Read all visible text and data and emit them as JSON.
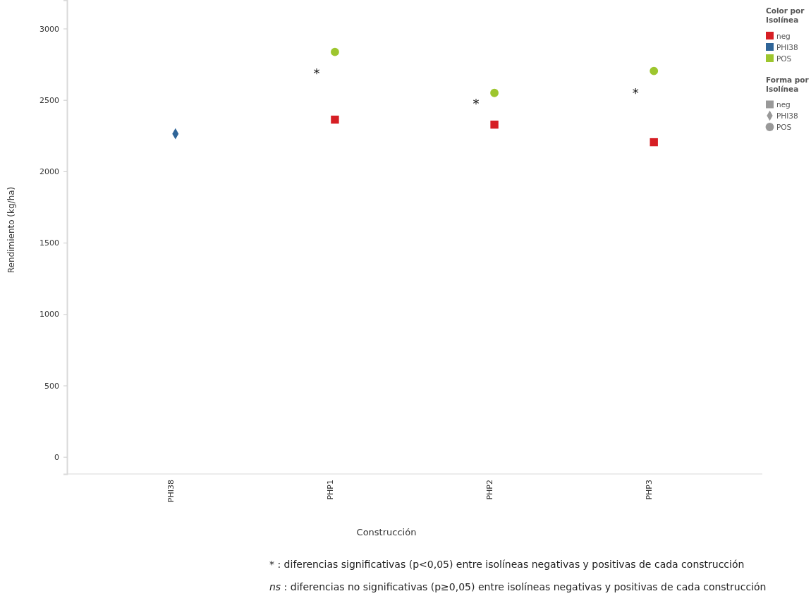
{
  "chart_data": {
    "type": "scatter",
    "xlabel": "Construcción",
    "ylabel": "Rendimiento (kg/ha)",
    "categories": [
      "PHI38",
      "PHP1",
      "PHP2",
      "PHP3"
    ],
    "series": [
      {
        "name": "neg",
        "color": "#d61e24",
        "marker": "square",
        "values": [
          null,
          2362,
          2327,
          2204
        ]
      },
      {
        "name": "PHI38",
        "color": "#2f6598",
        "marker": "diamond",
        "values": [
          2263,
          null,
          null,
          null
        ]
      },
      {
        "name": "POS",
        "color": "#9dc62e",
        "marker": "circle",
        "values": [
          null,
          2836,
          2549,
          2703
        ]
      }
    ],
    "ylim": [
      -120,
      3200
    ],
    "yticks": [
      0,
      500,
      1000,
      1500,
      2000,
      2500,
      3000
    ],
    "grid": false,
    "legend": "top right",
    "legend_title": "Color por Isolínea",
    "annotations": [
      "Forma por Isolínea",
      "*",
      "*",
      "*",
      "* : diferencias significativas (p<0,05) entre isolíneas negativas y positivas de cada construcción",
      "ns : diferencias no significativas (p≥0,05) entre isolíneas negativas y positivas de cada construcción"
    ]
  }
}
